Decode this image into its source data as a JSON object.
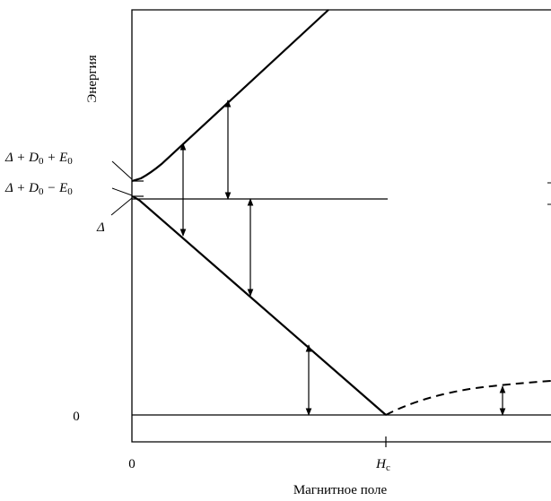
{
  "axes": {
    "y_title": "Энергия",
    "x_title": "Магнитное поле",
    "x_ticks": [
      {
        "id": "x-zero",
        "text": "0"
      },
      {
        "id": "x-hc",
        "main": "H",
        "sub": "c"
      }
    ],
    "y_ticks": [
      {
        "id": "y-zero",
        "text": "0"
      }
    ]
  },
  "level_labels": {
    "upper": {
      "base": "Δ + D",
      "sub1": "0",
      "mid": " + E",
      "sub2": "0"
    },
    "middle": {
      "base": "Δ + D",
      "sub1": "0",
      "mid": " − E",
      "sub2": "0"
    },
    "lower": {
      "base": "Δ"
    }
  },
  "curves": [
    "upper-branch",
    "middle-level",
    "lower-branch",
    "ground-level",
    "dashed-branch"
  ],
  "arrow_count": 6
}
